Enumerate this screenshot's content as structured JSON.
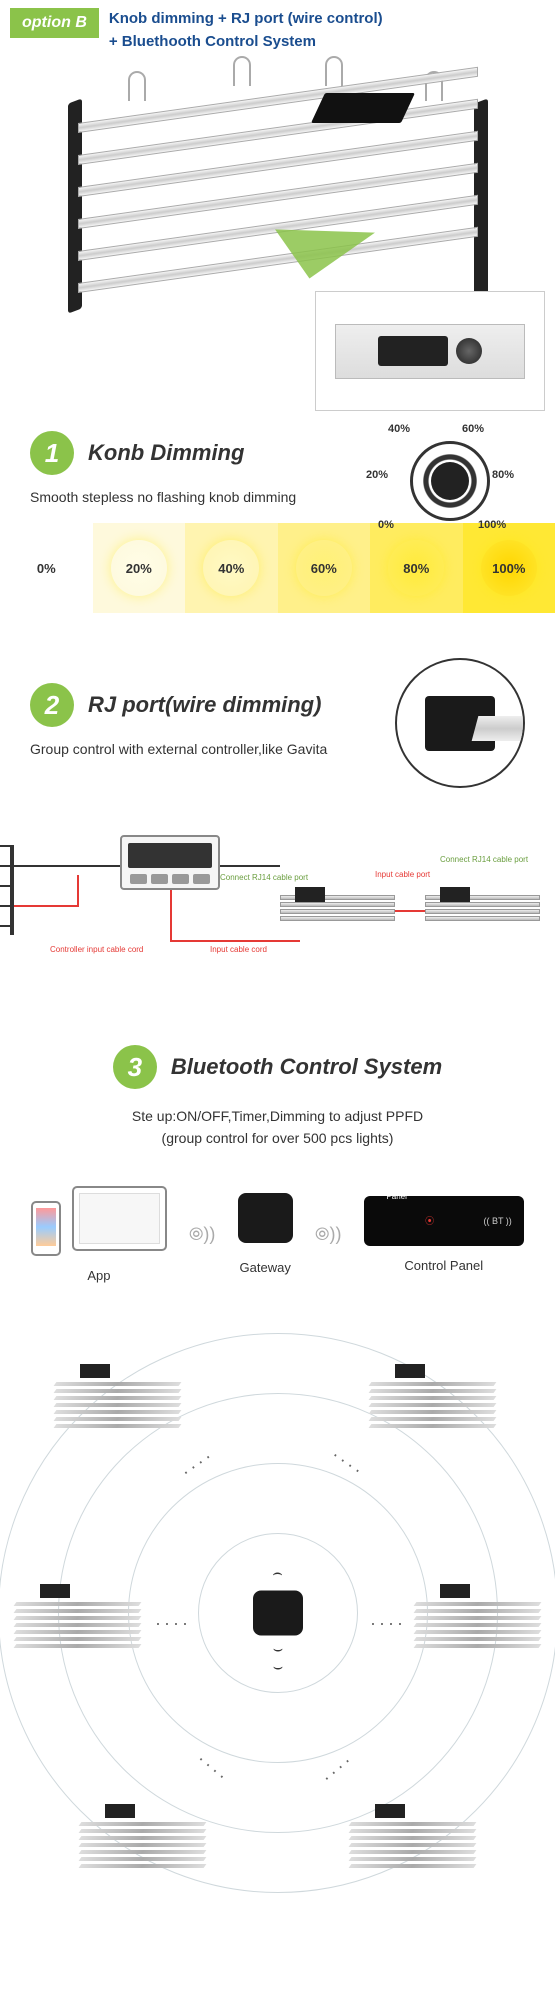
{
  "header": {
    "badge": "option B",
    "line1": "Knob dimming + RJ port (wire control)",
    "line2": "+ Bluethooth Control System"
  },
  "section1": {
    "num": "1",
    "title": "Konb Dimming",
    "sub": "Smooth stepless no flashing knob dimming",
    "dial_labels": [
      "0%",
      "20%",
      "40%",
      "60%",
      "80%",
      "100%"
    ],
    "dial_positions": [
      {
        "l": "-2px",
        "t": "108px"
      },
      {
        "l": "-14px",
        "t": "58px"
      },
      {
        "l": "8px",
        "t": "12px"
      },
      {
        "l": "82px",
        "t": "12px"
      },
      {
        "l": "112px",
        "t": "58px"
      },
      {
        "l": "98px",
        "t": "108px"
      }
    ]
  },
  "brightness": {
    "levels": [
      "0%",
      "20%",
      "40%",
      "60%",
      "80%",
      "100%"
    ],
    "bg_colors": [
      "#ffffff",
      "#fef9dc",
      "#fff4b0",
      "#fff08a",
      "#ffec5f",
      "#ffe834"
    ],
    "dot_colors": [
      "#ffffff",
      "#fffde7",
      "#fff9c4",
      "#fff176",
      "#ffeb3b",
      "#ffd600"
    ]
  },
  "section2": {
    "num": "2",
    "title": "RJ port(wire dimming)",
    "sub": "Group control with external controller,like Gavita",
    "labels": {
      "ctrl_in": "Controller input cable cord",
      "in_cord": "Input cable cord",
      "rj14": "Connect RJ14 cable port",
      "in_port": "Input cable port"
    }
  },
  "section3": {
    "num": "3",
    "title": "Bluetooth Control System",
    "sub1": "Ste up:ON/OFF,Timer,Dimming to adjust PPFD",
    "sub2": "(group control for over 500 pcs lights)",
    "devices": {
      "app": "App",
      "gateway": "Gateway",
      "panel": "Control Panel"
    },
    "panel": {
      "title": "Control Panel",
      "bt": "(( BT ))"
    }
  },
  "colors": {
    "green": "#8bc34a",
    "blue": "#1a4d8f",
    "red": "#e53935"
  },
  "mesh": {
    "rings": [
      160,
      300,
      440,
      560
    ],
    "lights": [
      {
        "l": "55px",
        "t": "55px"
      },
      {
        "l": "370px",
        "t": "55px"
      },
      {
        "l": "15px",
        "t": "275px"
      },
      {
        "l": "415px",
        "t": "275px"
      },
      {
        "l": "80px",
        "t": "495px"
      },
      {
        "l": "350px",
        "t": "495px"
      }
    ],
    "dots": [
      {
        "l": "180px",
        "t": "140px",
        "r": "-35deg"
      },
      {
        "l": "330px",
        "t": "140px",
        "r": "35deg"
      },
      {
        "l": "155px",
        "t": "300px",
        "r": "0deg"
      },
      {
        "l": "370px",
        "t": "300px",
        "r": "0deg"
      },
      {
        "l": "195px",
        "t": "445px",
        "r": "40deg"
      },
      {
        "l": "320px",
        "t": "445px",
        "r": "-40deg"
      }
    ]
  }
}
